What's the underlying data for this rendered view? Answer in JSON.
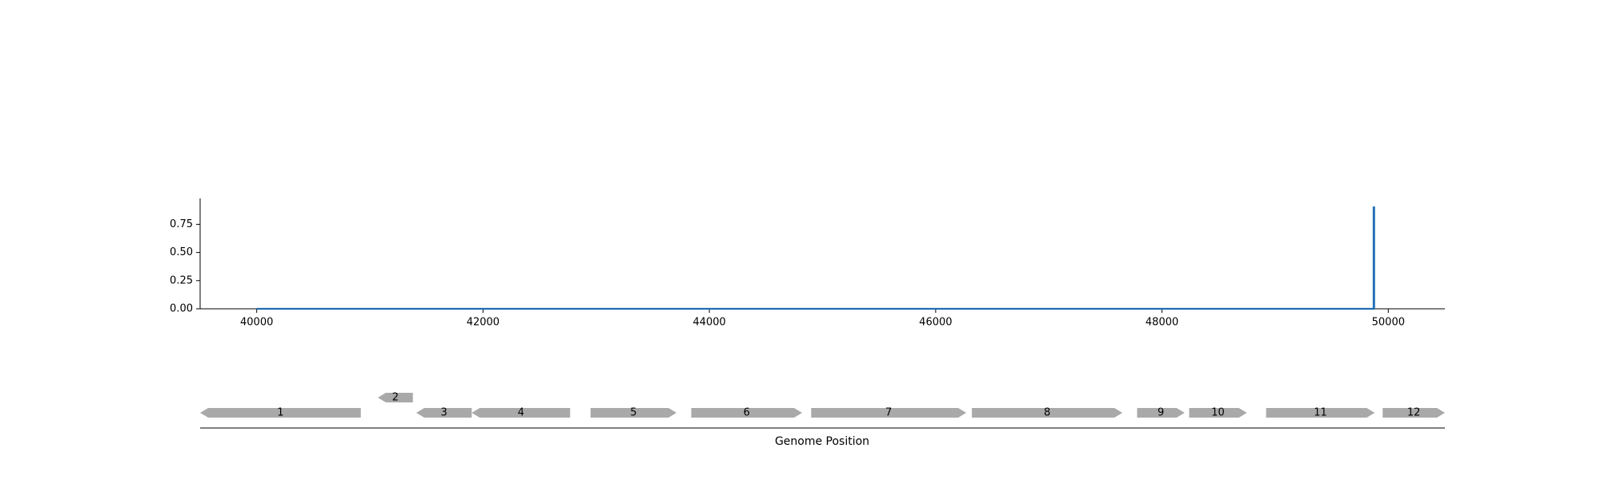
{
  "chart_data": {
    "type": "line",
    "title": "",
    "xlabel": "",
    "ylabel": "",
    "xlim": [
      39500,
      50500
    ],
    "ylim": [
      0,
      0.98
    ],
    "xticks": [
      "40000",
      "42000",
      "44000",
      "46000",
      "48000",
      "50000"
    ],
    "yticks": [
      "0.00",
      "0.25",
      "0.50",
      "0.75"
    ],
    "grid": false,
    "series": [
      {
        "color": "#1f6eb4",
        "x": [
          40000,
          49870,
          49870,
          49875,
          49875
        ],
        "y": [
          0,
          0,
          0.9,
          0.9,
          0
        ]
      }
    ]
  },
  "gene_track": {
    "xlabel": "Genome Position",
    "color": "#a9a9a9",
    "genes": [
      {
        "label": "1",
        "start": 39500,
        "end": 40920,
        "strand": "-",
        "row": 0
      },
      {
        "label": "2",
        "start": 41070,
        "end": 41380,
        "strand": "-",
        "row": 1
      },
      {
        "label": "3",
        "start": 41410,
        "end": 41900,
        "strand": "-",
        "row": 0
      },
      {
        "label": "4",
        "start": 41900,
        "end": 42770,
        "strand": "-",
        "row": 0
      },
      {
        "label": "5",
        "start": 42950,
        "end": 43710,
        "strand": "+",
        "row": 0
      },
      {
        "label": "6",
        "start": 43840,
        "end": 44820,
        "strand": "+",
        "row": 0
      },
      {
        "label": "7",
        "start": 44900,
        "end": 46270,
        "strand": "+",
        "row": 0
      },
      {
        "label": "8",
        "start": 46320,
        "end": 47650,
        "strand": "+",
        "row": 0
      },
      {
        "label": "9",
        "start": 47780,
        "end": 48200,
        "strand": "+",
        "row": 0
      },
      {
        "label": "10",
        "start": 48240,
        "end": 48750,
        "strand": "+",
        "row": 0
      },
      {
        "label": "11",
        "start": 48920,
        "end": 49880,
        "strand": "+",
        "row": 0
      },
      {
        "label": "12",
        "start": 49950,
        "end": 50500,
        "strand": "+",
        "row": 0
      }
    ]
  }
}
